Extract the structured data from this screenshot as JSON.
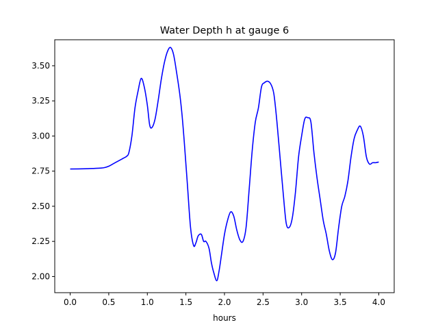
{
  "chart_data": {
    "type": "line",
    "title": "Water Depth h at gauge 6",
    "xlabel": "hours",
    "ylabel": "",
    "xlim": [
      -0.2,
      4.2
    ],
    "ylim": [
      1.885,
      3.685
    ],
    "x_ticks": [
      0.0,
      0.5,
      1.0,
      1.5,
      2.0,
      2.5,
      3.0,
      3.5,
      4.0
    ],
    "x_tick_labels": [
      "0.0",
      "0.5",
      "1.0",
      "1.5",
      "2.0",
      "2.5",
      "3.0",
      "3.5",
      "4.0"
    ],
    "y_ticks": [
      2.0,
      2.25,
      2.5,
      2.75,
      3.0,
      3.25,
      3.5
    ],
    "y_tick_labels": [
      "2.00",
      "2.25",
      "2.50",
      "2.75",
      "3.00",
      "3.25",
      "3.50"
    ],
    "grid": false,
    "series": [
      {
        "color": "#0000ff",
        "x": [
          0.0,
          0.2,
          0.3,
          0.4,
          0.45,
          0.5,
          0.55,
          0.6,
          0.65,
          0.7,
          0.73,
          0.76,
          0.8,
          0.84,
          0.88,
          0.92,
          0.96,
          1.0,
          1.03,
          1.06,
          1.1,
          1.14,
          1.18,
          1.22,
          1.26,
          1.3,
          1.34,
          1.38,
          1.42,
          1.45,
          1.48,
          1.52,
          1.56,
          1.6,
          1.63,
          1.66,
          1.7,
          1.73,
          1.76,
          1.8,
          1.83,
          1.86,
          1.9,
          1.93,
          1.96,
          2.0,
          2.04,
          2.08,
          2.12,
          2.16,
          2.2,
          2.24,
          2.28,
          2.32,
          2.36,
          2.4,
          2.44,
          2.48,
          2.52,
          2.56,
          2.6,
          2.64,
          2.68,
          2.72,
          2.76,
          2.8,
          2.84,
          2.88,
          2.92,
          2.96,
          3.0,
          3.04,
          3.08,
          3.12,
          3.16,
          3.2,
          3.24,
          3.28,
          3.32,
          3.36,
          3.4,
          3.44,
          3.48,
          3.52,
          3.56,
          3.6,
          3.64,
          3.68,
          3.72,
          3.76,
          3.8,
          3.84,
          3.88,
          3.92,
          3.96,
          4.0
        ],
        "values": [
          2.765,
          2.767,
          2.769,
          2.772,
          2.776,
          2.785,
          2.8,
          2.815,
          2.83,
          2.845,
          2.855,
          2.88,
          3.0,
          3.2,
          3.32,
          3.41,
          3.35,
          3.22,
          3.08,
          3.06,
          3.12,
          3.25,
          3.4,
          3.52,
          3.6,
          3.63,
          3.58,
          3.45,
          3.3,
          3.15,
          2.95,
          2.65,
          2.35,
          2.22,
          2.24,
          2.29,
          2.3,
          2.25,
          2.25,
          2.2,
          2.1,
          2.03,
          1.97,
          2.04,
          2.15,
          2.3,
          2.4,
          2.46,
          2.43,
          2.33,
          2.26,
          2.25,
          2.35,
          2.62,
          2.9,
          3.1,
          3.2,
          3.35,
          3.38,
          3.39,
          3.37,
          3.3,
          3.1,
          2.85,
          2.6,
          2.38,
          2.35,
          2.42,
          2.6,
          2.85,
          3.0,
          3.12,
          3.13,
          3.1,
          2.88,
          2.7,
          2.55,
          2.4,
          2.3,
          2.18,
          2.12,
          2.17,
          2.35,
          2.5,
          2.57,
          2.68,
          2.85,
          2.98,
          3.04,
          3.07,
          3.0,
          2.85,
          2.8,
          2.81,
          2.81,
          2.815
        ]
      }
    ]
  }
}
